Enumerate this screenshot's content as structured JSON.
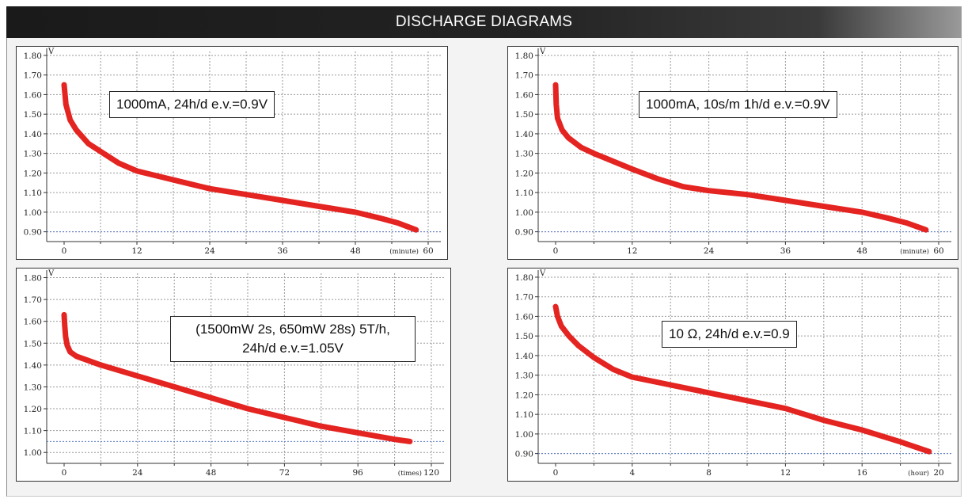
{
  "header": {
    "title": "DISCHARGE DIAGRAMS"
  },
  "chart_data": [
    {
      "type": "line",
      "annotation": "1000mA, 24h/d e.v.=0.9V",
      "ylabel": "V",
      "xunit": "(minute)",
      "ylim": [
        0.85,
        1.82
      ],
      "xlim": [
        0,
        60
      ],
      "yticks": [
        "1.80",
        "1.70",
        "1.60",
        "1.50",
        "1.40",
        "1.30",
        "1.20",
        "1.10",
        "1.00",
        "0.90"
      ],
      "xticks": [
        "0",
        "12",
        "24",
        "36",
        "48",
        "60"
      ],
      "cutoff": 0.9,
      "line_color": "#e42421",
      "series": [
        {
          "x": [
            0,
            0.3,
            1,
            2,
            4,
            6,
            9,
            12,
            16,
            20,
            24,
            30,
            36,
            42,
            48,
            52,
            55,
            58
          ],
          "y": [
            1.65,
            1.55,
            1.47,
            1.42,
            1.35,
            1.31,
            1.25,
            1.21,
            1.18,
            1.15,
            1.12,
            1.09,
            1.06,
            1.03,
            1.0,
            0.97,
            0.945,
            0.91
          ]
        }
      ]
    },
    {
      "type": "line",
      "annotation": "1000mA, 10s/m 1h/d e.v.=0.9V",
      "ylabel": "V",
      "xunit": "(minute)",
      "ylim": [
        0.85,
        1.82
      ],
      "xlim": [
        0,
        60
      ],
      "yticks": [
        "1.80",
        "1.70",
        "1.60",
        "1.50",
        "1.40",
        "1.30",
        "1.20",
        "1.10",
        "1.00",
        "0.90"
      ],
      "xticks": [
        "0",
        "12",
        "24",
        "36",
        "48",
        "60"
      ],
      "cutoff": 0.9,
      "line_color": "#e42421",
      "series": [
        {
          "x": [
            0,
            0.1,
            0.3,
            1,
            2,
            4,
            6,
            9,
            12,
            16,
            20,
            24,
            30,
            36,
            42,
            48,
            52,
            55,
            58
          ],
          "y": [
            1.65,
            1.55,
            1.48,
            1.42,
            1.38,
            1.33,
            1.3,
            1.26,
            1.22,
            1.17,
            1.13,
            1.11,
            1.09,
            1.06,
            1.03,
            1.0,
            0.97,
            0.945,
            0.91
          ]
        }
      ]
    },
    {
      "type": "line",
      "annotation": "(1500mW 2s, 650mW 28s) 5T/h,\n24h/d e.v.=1.05V",
      "ylabel": "V",
      "xunit": "(times)",
      "ylim": [
        0.95,
        1.82
      ],
      "xlim": [
        0,
        120
      ],
      "yticks": [
        "1.80",
        "1.70",
        "1.60",
        "1.50",
        "1.40",
        "1.30",
        "1.20",
        "1.10",
        "1.00"
      ],
      "xticks": [
        "0",
        "24",
        "48",
        "72",
        "96",
        "120"
      ],
      "cutoff": 1.05,
      "line_color": "#e42421",
      "series": [
        {
          "x": [
            0,
            0.2,
            0.5,
            1,
            2,
            4,
            8,
            12,
            24,
            36,
            48,
            60,
            72,
            84,
            96,
            108,
            113
          ],
          "y": [
            1.63,
            1.58,
            1.53,
            1.49,
            1.46,
            1.44,
            1.42,
            1.4,
            1.35,
            1.3,
            1.25,
            1.2,
            1.16,
            1.12,
            1.09,
            1.06,
            1.05
          ]
        }
      ]
    },
    {
      "type": "line",
      "annotation": "10 Ω, 24h/d e.v.=0.9",
      "ylabel": "V",
      "xunit": "(hour)",
      "ylim": [
        0.85,
        1.82
      ],
      "xlim": [
        0,
        20
      ],
      "yticks": [
        "1.80",
        "1.70",
        "1.60",
        "1.50",
        "1.40",
        "1.30",
        "1.20",
        "1.10",
        "1.00",
        "0.90"
      ],
      "xticks": [
        "0",
        "4",
        "8",
        "12",
        "16",
        "20"
      ],
      "cutoff": 0.9,
      "line_color": "#e42421",
      "series": [
        {
          "x": [
            0,
            0.1,
            0.3,
            0.7,
            1.2,
            2,
            3,
            4,
            6,
            8,
            10,
            12,
            14,
            16,
            18,
            19.5
          ],
          "y": [
            1.65,
            1.6,
            1.55,
            1.5,
            1.45,
            1.39,
            1.33,
            1.29,
            1.25,
            1.21,
            1.17,
            1.13,
            1.07,
            1.02,
            0.96,
            0.91
          ]
        }
      ]
    }
  ]
}
